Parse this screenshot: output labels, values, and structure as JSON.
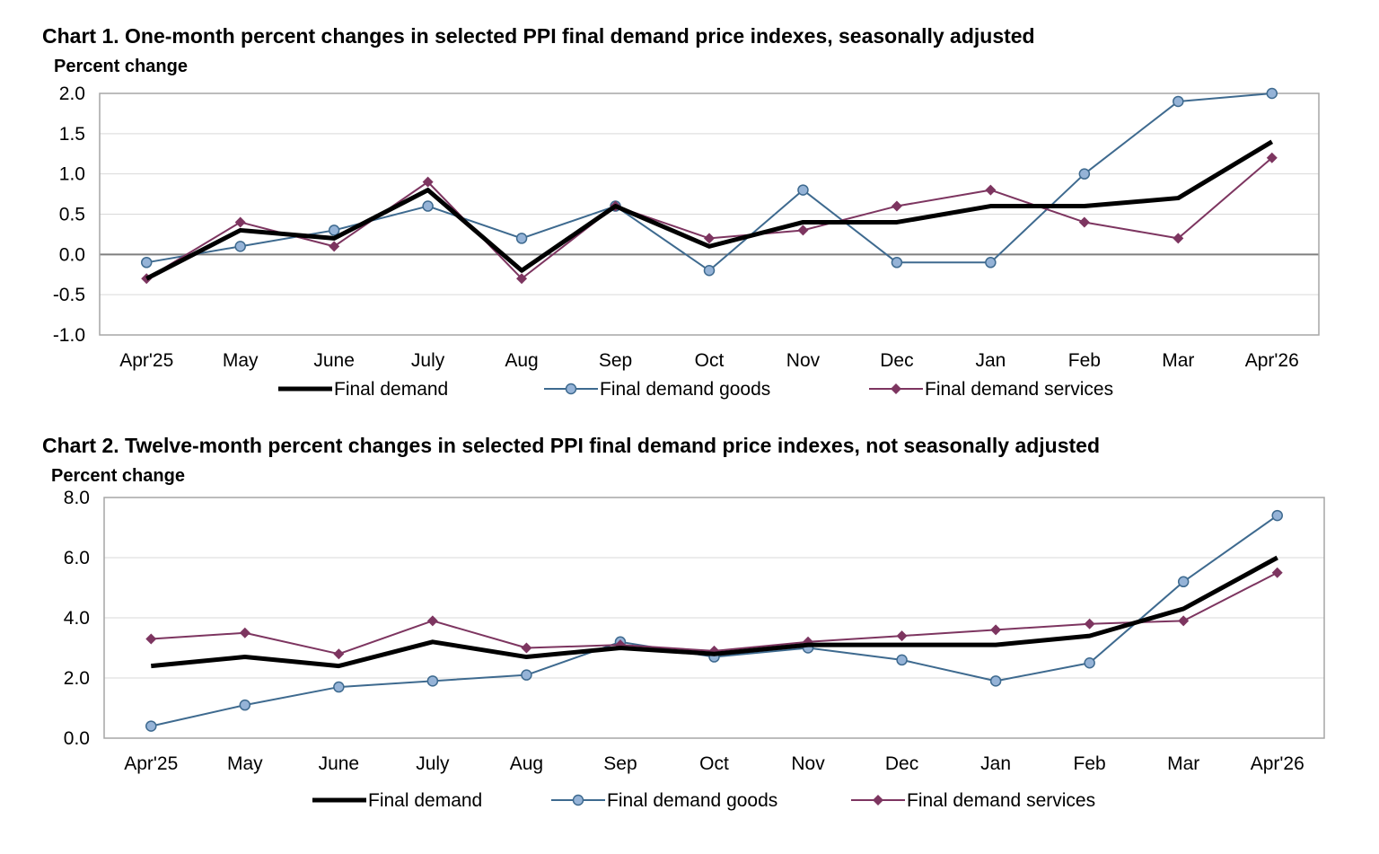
{
  "chart_data": [
    {
      "type": "line",
      "title": "Chart 1. One-month percent changes in selected PPI final demand price indexes, seasonally adjusted",
      "ylabel": "Percent change",
      "xlabel": "",
      "categories": [
        "Apr'25",
        "May",
        "June",
        "July",
        "Aug",
        "Sep",
        "Oct",
        "Nov",
        "Dec",
        "Jan",
        "Feb",
        "Mar",
        "Apr'26"
      ],
      "ylim": [
        -1.0,
        2.0
      ],
      "yticks": [
        "-1.0",
        "-0.5",
        "0.0",
        "0.5",
        "1.0",
        "1.5",
        "2.0"
      ],
      "grid": true,
      "legend_position": "bottom",
      "series": [
        {
          "name": "Final demand",
          "color": "#000000",
          "marker": "none",
          "values": [
            -0.3,
            0.3,
            0.2,
            0.8,
            -0.2,
            0.6,
            0.1,
            0.4,
            0.4,
            0.6,
            0.6,
            0.7,
            1.4
          ]
        },
        {
          "name": "Final demand goods",
          "color": "#3E6A8F",
          "marker": "circle",
          "values": [
            -0.1,
            0.1,
            0.3,
            0.6,
            0.2,
            0.6,
            -0.2,
            0.8,
            -0.1,
            -0.1,
            1.0,
            1.9,
            2.0
          ]
        },
        {
          "name": "Final demand services",
          "color": "#7D3560",
          "marker": "diamond",
          "values": [
            -0.3,
            0.4,
            0.1,
            0.9,
            -0.3,
            0.6,
            0.2,
            0.3,
            0.6,
            0.8,
            0.4,
            0.2,
            1.2
          ]
        }
      ]
    },
    {
      "type": "line",
      "title": "Chart 2. Twelve-month percent changes in selected PPI final demand price indexes, not seasonally adjusted",
      "ylabel": "Percent change",
      "xlabel": "",
      "categories": [
        "Apr'25",
        "May",
        "June",
        "July",
        "Aug",
        "Sep",
        "Oct",
        "Nov",
        "Dec",
        "Jan",
        "Feb",
        "Mar",
        "Apr'26"
      ],
      "ylim": [
        0.0,
        8.0
      ],
      "yticks": [
        "0.0",
        "2.0",
        "4.0",
        "6.0",
        "8.0"
      ],
      "grid": true,
      "legend_position": "bottom",
      "series": [
        {
          "name": "Final demand",
          "color": "#000000",
          "marker": "none",
          "values": [
            2.4,
            2.7,
            2.4,
            3.2,
            2.7,
            3.0,
            2.8,
            3.1,
            3.1,
            3.1,
            3.4,
            4.3,
            6.0
          ]
        },
        {
          "name": "Final demand goods",
          "color": "#3E6A8F",
          "marker": "circle",
          "values": [
            0.4,
            1.1,
            1.7,
            1.9,
            2.1,
            3.2,
            2.7,
            3.0,
            2.6,
            1.9,
            2.5,
            5.2,
            7.4
          ]
        },
        {
          "name": "Final demand services",
          "color": "#7D3560",
          "marker": "diamond",
          "values": [
            3.3,
            3.5,
            2.8,
            3.9,
            3.0,
            3.1,
            2.9,
            3.2,
            3.4,
            3.6,
            3.8,
            3.9,
            5.5
          ]
        }
      ]
    }
  ],
  "styles": {
    "grid_color": "#D9D9D9",
    "frame_color": "#A6A6A6",
    "zero_line_color": "#7F7F7F",
    "marker_fill_circle": "#95B3D7"
  }
}
